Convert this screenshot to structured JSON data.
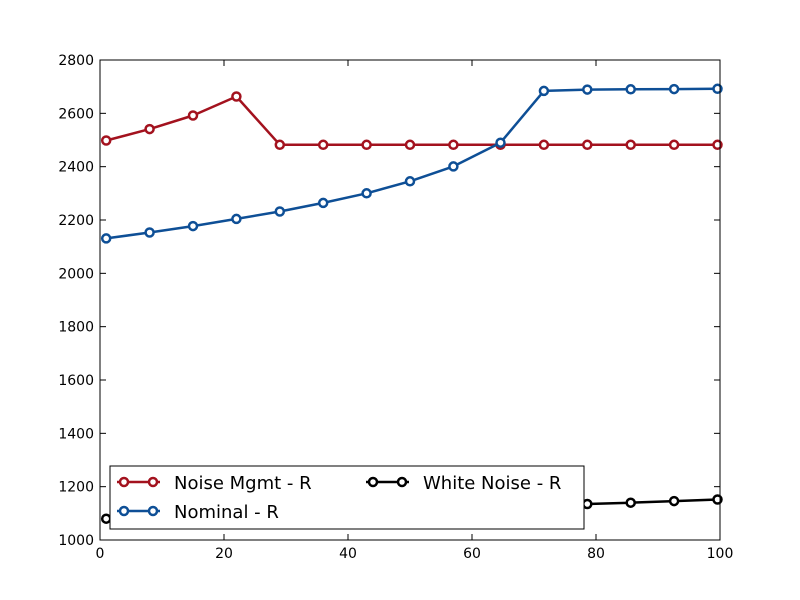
{
  "chart_data": {
    "type": "line",
    "title": "",
    "xlabel": "",
    "ylabel": "",
    "xlim": [
      0,
      100
    ],
    "ylim": [
      1000,
      2800
    ],
    "x_ticks": [
      0,
      20,
      40,
      60,
      80,
      100
    ],
    "y_ticks": [
      1000,
      1200,
      1400,
      1600,
      1800,
      2000,
      2200,
      2400,
      2600,
      2800
    ],
    "grid": false,
    "legend_position": "lower-left",
    "x": [
      1,
      8,
      15,
      22,
      29,
      36,
      43,
      50,
      57,
      64.6,
      71.6,
      78.6,
      85.6,
      92.6,
      99.6
    ],
    "series": [
      {
        "name": "Noise Mgmt - R",
        "color": "#a3121e",
        "values": [
          2498,
          2541,
          2592,
          2663,
          2482,
          2482,
          2482,
          2482,
          2482,
          2482,
          2482,
          2482,
          2482,
          2482,
          2482
        ]
      },
      {
        "name": "Nominal - R",
        "color": "#0e4f96",
        "values": [
          2131,
          2153,
          2177,
          2204,
          2232,
          2264,
          2300,
          2345,
          2401,
          2490,
          2684,
          2689,
          2690,
          2691,
          2692
        ]
      },
      {
        "name": "White Noise - R",
        "color": "#000000",
        "values": [
          1080,
          1085,
          1090,
          1095,
          1100,
          1104,
          1108,
          1112,
          1116,
          1120,
          1126,
          1135,
          1140,
          1146,
          1152
        ]
      }
    ]
  }
}
